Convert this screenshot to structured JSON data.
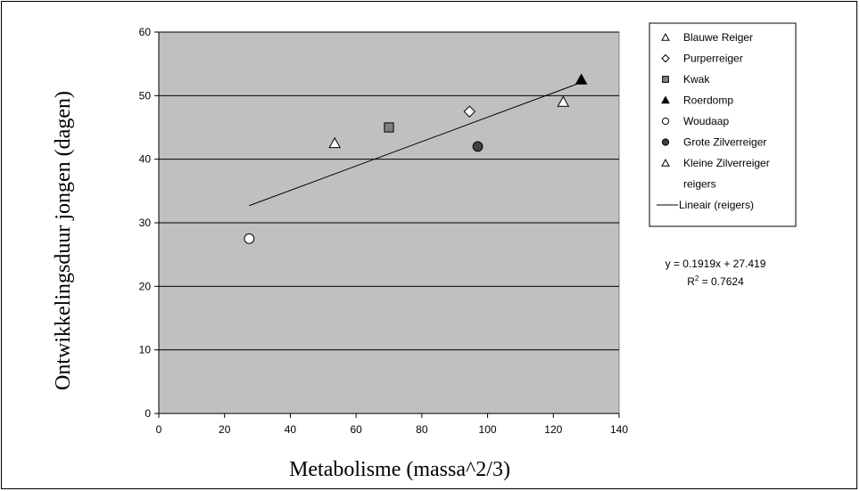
{
  "chart_data": {
    "type": "scatter",
    "xlabel": "Metabolisme (massa^2/3)",
    "ylabel": "Ontwikkelingsduur jongen (dagen)",
    "xlim": [
      0,
      140
    ],
    "ylim": [
      0,
      60
    ],
    "x_ticks": [
      0,
      20,
      40,
      60,
      80,
      100,
      120,
      140
    ],
    "y_ticks": [
      0,
      10,
      20,
      30,
      40,
      50,
      60
    ],
    "x_tick_labels": [
      "0",
      "20",
      "40",
      "60",
      "80",
      "100",
      "120",
      "140"
    ],
    "y_tick_labels": [
      "0",
      "10",
      "20",
      "30",
      "40",
      "50",
      "60"
    ],
    "grid": "horizontal",
    "plot_background": "#c0c0c0",
    "legend_position": "right",
    "series": [
      {
        "name": "Blauwe Reiger",
        "marker": "triangle-open",
        "points": [
          {
            "x": 123,
            "y": 49
          }
        ]
      },
      {
        "name": "Purperreiger",
        "marker": "diamond-open",
        "points": [
          {
            "x": 94.5,
            "y": 47.5
          }
        ]
      },
      {
        "name": "Kwak",
        "marker": "square-gray",
        "points": [
          {
            "x": 70,
            "y": 45
          }
        ]
      },
      {
        "name": "Roerdomp",
        "marker": "triangle-filled",
        "points": [
          {
            "x": 128.5,
            "y": 52.5
          }
        ]
      },
      {
        "name": "Woudaap",
        "marker": "circle-open",
        "points": [
          {
            "x": 27.5,
            "y": 27.5
          }
        ]
      },
      {
        "name": "Grote Zilverreiger",
        "marker": "circle-filled",
        "points": [
          {
            "x": 97,
            "y": 42
          }
        ]
      },
      {
        "name": "Kleine Zilverreiger",
        "marker": "triangle-open",
        "points": [
          {
            "x": 53.5,
            "y": 42.5
          }
        ]
      },
      {
        "name": "reigers",
        "marker": "none",
        "points": []
      }
    ],
    "trendline": {
      "name": "Lineair (reigers)",
      "slope": 0.1919,
      "intercept": 27.419,
      "x_range": [
        27.5,
        128.5
      ],
      "equation": "y = 0.1919x + 27.419",
      "r2_prefix": "R",
      "r2_sup": "2",
      "r2_value": " = 0.7624"
    }
  }
}
